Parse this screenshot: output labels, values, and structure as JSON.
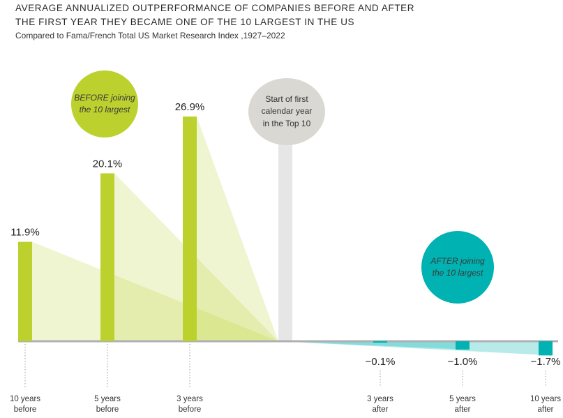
{
  "title_line1": "AVERAGE ANNUALIZED OUTPERFORMANCE OF COMPANIES BEFORE AND AFTER",
  "title_line2": "THE FIRST YEAR THEY BECAME ONE OF THE 10 LARGEST IN THE US",
  "subtitle": "Compared to Fama/French Total US Market Research Index ,1927–2022",
  "circles": {
    "before_line1": "BEFORE joining",
    "before_line2": "the 10 largest",
    "start_line1": "Start of first",
    "start_line2": "calendar year",
    "start_line3": "in the Top 10",
    "after_line1": "AFTER joining",
    "after_line2": "the 10 largest"
  },
  "colors": {
    "before": "#bcd12e",
    "after": "#00b2b2",
    "axis": "#aeb0b3",
    "marker": "#e6e6e6"
  },
  "chart_data": {
    "type": "bar",
    "categories": [
      "10 years before",
      "5 years before",
      "3 years before",
      "3 years after",
      "5 years after",
      "10 years after"
    ],
    "tick_labels": [
      [
        "10 years",
        "before"
      ],
      [
        "5 years",
        "before"
      ],
      [
        "3 years",
        "before"
      ],
      [
        "3 years",
        "after"
      ],
      [
        "5 years",
        "after"
      ],
      [
        "10 years",
        "after"
      ]
    ],
    "values": [
      11.9,
      20.1,
      26.9,
      -0.1,
      -1.0,
      -1.7
    ],
    "data_labels": [
      "11.9%",
      "20.1%",
      "26.9%",
      "−0.1%",
      "−1.0%",
      "−1.7%"
    ],
    "title": "AVERAGE ANNUALIZED OUTPERFORMANCE OF COMPANIES BEFORE AND AFTER THE FIRST YEAR THEY BECAME ONE OF THE 10 LARGEST IN THE US",
    "ylim": [
      -2,
      30
    ],
    "grid": false
  }
}
